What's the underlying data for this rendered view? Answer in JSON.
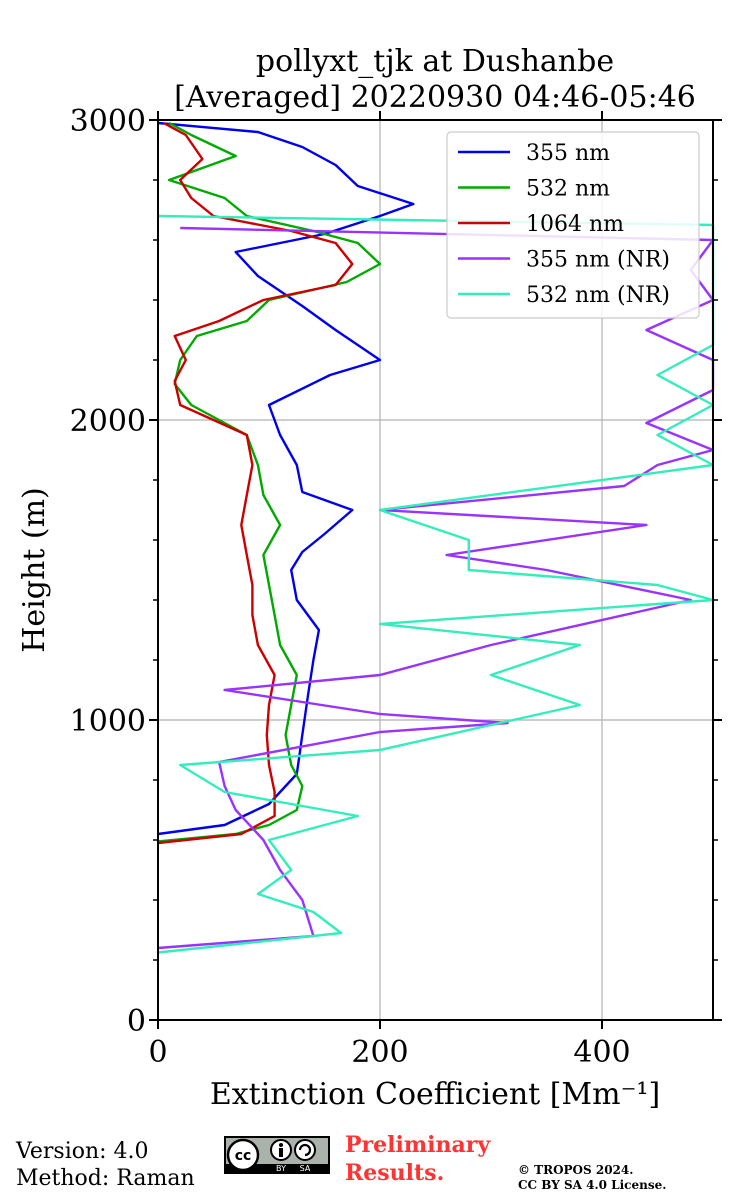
{
  "chart_data": {
    "type": "line",
    "title": "pollyxt_tjk at Dushanbe",
    "subtitle": "[Averaged] 20220930 04:46-05:46",
    "xlabel": "Extinction Coefficient [Mm⁻¹]",
    "ylabel": "Height (m)",
    "xlim": [
      0,
      500
    ],
    "ylim": [
      0,
      3000
    ],
    "x_ticks": [
      0,
      200,
      400
    ],
    "y_ticks": [
      0,
      1000,
      2000,
      3000
    ],
    "grid": true,
    "legend_position": "top-right",
    "series": [
      {
        "name": "355 nm",
        "color": "#0000ee",
        "points": [
          [
            0,
            620
          ],
          [
            60,
            650
          ],
          [
            100,
            720
          ],
          [
            125,
            820
          ],
          [
            130,
            950
          ],
          [
            135,
            1080
          ],
          [
            140,
            1200
          ],
          [
            145,
            1300
          ],
          [
            125,
            1400
          ],
          [
            120,
            1500
          ],
          [
            130,
            1560
          ],
          [
            150,
            1620
          ],
          [
            175,
            1700
          ],
          [
            130,
            1760
          ],
          [
            125,
            1850
          ],
          [
            110,
            1950
          ],
          [
            100,
            2050
          ],
          [
            155,
            2150
          ],
          [
            200,
            2200
          ],
          [
            160,
            2300
          ],
          [
            130,
            2380
          ],
          [
            90,
            2480
          ],
          [
            70,
            2560
          ],
          [
            150,
            2620
          ],
          [
            200,
            2680
          ],
          [
            230,
            2720
          ],
          [
            180,
            2780
          ],
          [
            160,
            2850
          ],
          [
            130,
            2910
          ],
          [
            90,
            2960
          ],
          [
            0,
            2990
          ]
        ]
      },
      {
        "name": "532 nm",
        "color": "#00aa00",
        "points": [
          [
            0,
            595
          ],
          [
            70,
            620
          ],
          [
            100,
            650
          ],
          [
            125,
            700
          ],
          [
            130,
            780
          ],
          [
            120,
            850
          ],
          [
            115,
            950
          ],
          [
            120,
            1050
          ],
          [
            125,
            1150
          ],
          [
            110,
            1250
          ],
          [
            105,
            1350
          ],
          [
            100,
            1450
          ],
          [
            95,
            1550
          ],
          [
            110,
            1650
          ],
          [
            95,
            1750
          ],
          [
            90,
            1850
          ],
          [
            80,
            1950
          ],
          [
            30,
            2050
          ],
          [
            15,
            2120
          ],
          [
            20,
            2200
          ],
          [
            35,
            2280
          ],
          [
            80,
            2330
          ],
          [
            100,
            2400
          ],
          [
            170,
            2460
          ],
          [
            200,
            2520
          ],
          [
            180,
            2590
          ],
          [
            140,
            2630
          ],
          [
            80,
            2680
          ],
          [
            60,
            2740
          ],
          [
            10,
            2800
          ],
          [
            70,
            2880
          ],
          [
            30,
            2950
          ],
          [
            10,
            2990
          ]
        ]
      },
      {
        "name": "1064 nm",
        "color": "#cc0000",
        "points": [
          [
            0,
            590
          ],
          [
            75,
            620
          ],
          [
            105,
            680
          ],
          [
            105,
            760
          ],
          [
            100,
            850
          ],
          [
            98,
            950
          ],
          [
            100,
            1050
          ],
          [
            105,
            1150
          ],
          [
            90,
            1250
          ],
          [
            85,
            1350
          ],
          [
            85,
            1450
          ],
          [
            80,
            1550
          ],
          [
            75,
            1650
          ],
          [
            80,
            1750
          ],
          [
            85,
            1850
          ],
          [
            80,
            1950
          ],
          [
            20,
            2050
          ],
          [
            15,
            2130
          ],
          [
            25,
            2200
          ],
          [
            15,
            2280
          ],
          [
            55,
            2330
          ],
          [
            95,
            2400
          ],
          [
            160,
            2450
          ],
          [
            175,
            2520
          ],
          [
            160,
            2590
          ],
          [
            120,
            2630
          ],
          [
            50,
            2680
          ],
          [
            30,
            2740
          ],
          [
            20,
            2800
          ],
          [
            40,
            2870
          ],
          [
            25,
            2950
          ],
          [
            5,
            2990
          ]
        ]
      },
      {
        "name": "355 nm (NR)",
        "color": "#9933ff",
        "points": [
          [
            0,
            240
          ],
          [
            140,
            280
          ],
          [
            130,
            400
          ],
          [
            110,
            500
          ],
          [
            95,
            600
          ],
          [
            70,
            700
          ],
          [
            60,
            780
          ],
          [
            55,
            860
          ],
          [
            200,
            960
          ],
          [
            315,
            990
          ],
          [
            200,
            1020
          ],
          [
            60,
            1100
          ],
          [
            200,
            1150
          ],
          [
            300,
            1250
          ],
          [
            480,
            1400
          ],
          [
            350,
            1500
          ],
          [
            260,
            1550
          ],
          [
            440,
            1650
          ],
          [
            200,
            1700
          ],
          [
            420,
            1780
          ],
          [
            450,
            1850
          ],
          [
            500,
            1900
          ],
          [
            440,
            1990
          ],
          [
            500,
            2100
          ],
          [
            500,
            2200
          ],
          [
            440,
            2300
          ],
          [
            500,
            2400
          ],
          [
            480,
            2500
          ],
          [
            500,
            2600
          ],
          [
            20,
            2640
          ]
        ]
      },
      {
        "name": "532 nm (NR)",
        "color": "#33eebb",
        "points": [
          [
            0,
            225
          ],
          [
            165,
            290
          ],
          [
            140,
            360
          ],
          [
            90,
            420
          ],
          [
            120,
            500
          ],
          [
            100,
            600
          ],
          [
            180,
            680
          ],
          [
            60,
            760
          ],
          [
            20,
            850
          ],
          [
            200,
            900
          ],
          [
            380,
            1050
          ],
          [
            300,
            1150
          ],
          [
            380,
            1250
          ],
          [
            200,
            1320
          ],
          [
            500,
            1400
          ],
          [
            450,
            1450
          ],
          [
            280,
            1500
          ],
          [
            280,
            1600
          ],
          [
            200,
            1700
          ],
          [
            500,
            1850
          ],
          [
            450,
            1950
          ],
          [
            500,
            2050
          ],
          [
            450,
            2150
          ],
          [
            500,
            2250
          ],
          [
            500,
            2350
          ],
          [
            500,
            2450
          ],
          [
            500,
            2550
          ],
          [
            500,
            2600
          ],
          [
            500,
            2650
          ],
          [
            0,
            2680
          ]
        ]
      }
    ]
  },
  "footer": {
    "version": "Version: 4.0",
    "method": "Method: Raman",
    "preliminary_line1": "Preliminary",
    "preliminary_line2": "Results.",
    "copyright_line1": "© TROPOS 2024.",
    "copyright_line2": "CC BY SA 4.0 License."
  },
  "license_badge": {
    "cc": "cc",
    "by": "BY",
    "sa": "SA"
  }
}
